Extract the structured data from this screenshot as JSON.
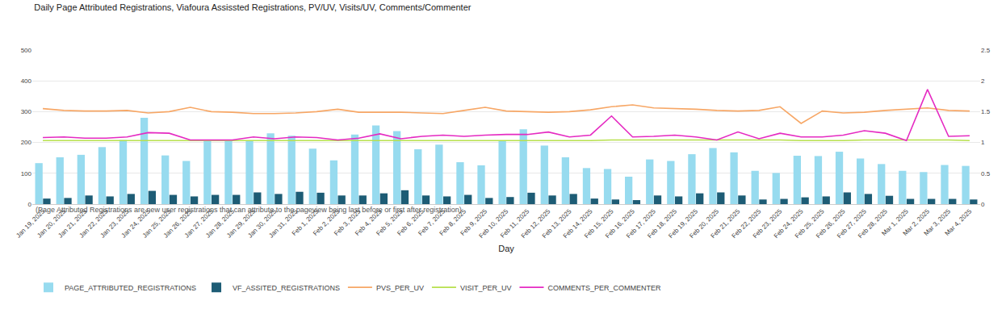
{
  "chart_data": {
    "type": "bar",
    "title": "Daily Page Attributed Registrations, Viafoura Assissted Registrations, PV/UV, Visits/UV, Comments/Commenter",
    "subtitle": "(Page Attributed Registrations are new user registrations that can attribute to the pageview being last before or first after registration)",
    "xlabel": "Day",
    "categories": [
      "Jan 19, 2025",
      "Jan 20, 2025",
      "Jan 21, 2025",
      "Jan 22, 2025",
      "Jan 23, 2025",
      "Jan 24, 2025",
      "Jan 25, 2025",
      "Jan 26, 2025",
      "Jan 27, 2025",
      "Jan 28, 2025",
      "Jan 29, 2025",
      "Jan 30, 2025",
      "Jan 31, 2025",
      "Feb 1, 2025",
      "Feb 2, 2025",
      "Feb 3, 2025",
      "Feb 4, 2025",
      "Feb 5, 2025",
      "Feb 6, 2025",
      "Feb 7, 2025",
      "Feb 8, 2025",
      "Feb 9, 2025",
      "Feb 10, 2025",
      "Feb 11, 2025",
      "Feb 12, 2025",
      "Feb 13, 2025",
      "Feb 14, 2025",
      "Feb 15, 2025",
      "Feb 16, 2025",
      "Feb 17, 2025",
      "Feb 18, 2025",
      "Feb 19, 2025",
      "Feb 20, 2025",
      "Feb 21, 2025",
      "Feb 22, 2025",
      "Feb 23, 2025",
      "Feb 24, 2025",
      "Feb 25, 2025",
      "Feb 26, 2025",
      "Feb 27, 2025",
      "Feb 28, 2025",
      "Mar 1, 2025",
      "Mar 2, 2025",
      "Mar 3, 2025",
      "Mar 4, 2025"
    ],
    "series": [
      {
        "name": "PAGE_ATTRIBUTED_REGISTRATIONS",
        "type": "bar",
        "color": "#97dbef",
        "values": [
          133,
          152,
          160,
          185,
          208,
          280,
          158,
          140,
          208,
          208,
          207,
          230,
          222,
          180,
          142,
          226,
          255,
          237,
          178,
          193,
          136,
          126,
          207,
          243,
          190,
          152,
          117,
          114,
          89,
          145,
          140,
          162,
          182,
          168,
          108,
          101,
          157,
          156,
          170,
          148,
          130,
          108,
          104,
          127,
          124
        ]
      },
      {
        "name": "VF_ASSITED_REGISTRATIONS",
        "type": "bar",
        "color": "#1d5c75",
        "values": [
          18,
          20,
          28,
          25,
          33,
          43,
          30,
          25,
          30,
          30,
          38,
          33,
          40,
          37,
          28,
          28,
          35,
          45,
          28,
          25,
          30,
          20,
          23,
          37,
          28,
          33,
          18,
          15,
          13,
          28,
          25,
          35,
          38,
          28,
          15,
          17,
          22,
          25,
          38,
          33,
          27,
          17,
          17,
          17,
          15
        ]
      },
      {
        "name": "PVS_PER_UV",
        "type": "line",
        "axis": "y2",
        "color": "#f7a766",
        "values": [
          1.55,
          1.52,
          1.51,
          1.51,
          1.52,
          1.48,
          1.5,
          1.57,
          1.5,
          1.49,
          1.47,
          1.47,
          1.48,
          1.5,
          1.54,
          1.49,
          1.49,
          1.49,
          1.48,
          1.47,
          1.52,
          1.57,
          1.51,
          1.5,
          1.49,
          1.5,
          1.53,
          1.58,
          1.61,
          1.56,
          1.55,
          1.54,
          1.52,
          1.51,
          1.52,
          1.58,
          1.31,
          1.51,
          1.48,
          1.49,
          1.52,
          1.54,
          1.56,
          1.52,
          1.51
        ]
      },
      {
        "name": "VISIT_PER_UV",
        "type": "line",
        "axis": "y2",
        "color": "#b7e04d",
        "values": [
          1.03,
          1.03,
          1.03,
          1.03,
          1.03,
          1.03,
          1.03,
          1.03,
          1.03,
          1.03,
          1.03,
          1.03,
          1.03,
          1.03,
          1.03,
          1.03,
          1.03,
          1.03,
          1.03,
          1.03,
          1.03,
          1.03,
          1.03,
          1.03,
          1.03,
          1.03,
          1.03,
          1.04,
          1.04,
          1.04,
          1.04,
          1.04,
          1.04,
          1.04,
          1.04,
          1.04,
          1.03,
          1.03,
          1.03,
          1.04,
          1.04,
          1.04,
          1.04,
          1.04,
          1.03
        ]
      },
      {
        "name": "COMMENTS_PER_COMMENTER",
        "type": "line",
        "axis": "y2",
        "color": "#e52bc2",
        "values": [
          1.08,
          1.09,
          1.07,
          1.07,
          1.09,
          1.16,
          1.15,
          1.04,
          1.04,
          1.04,
          1.09,
          1.06,
          1.09,
          1.08,
          1.04,
          1.07,
          1.14,
          1.06,
          1.1,
          1.12,
          1.1,
          1.12,
          1.13,
          1.13,
          1.17,
          1.09,
          1.12,
          1.43,
          1.09,
          1.1,
          1.12,
          1.09,
          1.04,
          1.17,
          1.06,
          1.15,
          1.09,
          1.09,
          1.12,
          1.19,
          1.15,
          1.03,
          1.86,
          1.1,
          1.11
        ]
      }
    ],
    "ylim": [
      0,
      500
    ],
    "yticks": [
      0,
      100,
      200,
      300,
      400,
      500
    ],
    "y2lim": [
      0,
      2.5
    ],
    "y2ticks": [
      0,
      0.5,
      1,
      1.5,
      2,
      2.5
    ],
    "grid": true,
    "legend": "bottom"
  }
}
